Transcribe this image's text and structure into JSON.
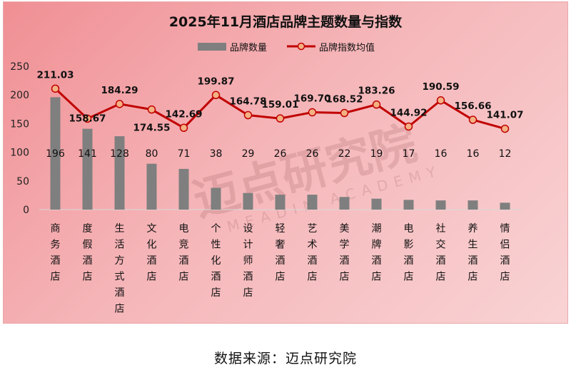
{
  "chart_data": {
    "type": "bar+line",
    "title": "2025年11月酒店品牌主题数量与指数",
    "categories": [
      "商务酒店",
      "度假酒店",
      "生活方式酒店",
      "文化酒店",
      "电竞酒店",
      "个性化酒店",
      "设计师酒店",
      "轻奢酒店",
      "艺术酒店",
      "美学酒店",
      "潮牌酒店",
      "电影酒店",
      "社交酒店",
      "养生酒店",
      "情侣酒店"
    ],
    "series": [
      {
        "name": "品牌数量",
        "type": "bar",
        "values": [
          196,
          141,
          128,
          80,
          71,
          38,
          29,
          26,
          26,
          22,
          19,
          17,
          16,
          16,
          12
        ]
      },
      {
        "name": "品牌指数均值",
        "type": "line",
        "values": [
          211.03,
          158.67,
          184.29,
          174.55,
          142.69,
          199.87,
          164.78,
          159.01,
          169.7,
          168.52,
          183.26,
          144.92,
          190.59,
          156.66,
          141.07
        ]
      }
    ],
    "value_labels": [
      "211.03",
      "158.67",
      "184.29",
      "174.55",
      "142.69",
      "199.87",
      "164.78",
      "159.01",
      "169.70",
      "168.52",
      "183.26",
      "144.92",
      "190.59",
      "156.66",
      "141.07"
    ],
    "ylim": [
      0,
      250
    ],
    "yticks": [
      "0",
      "50",
      "100",
      "150",
      "200",
      "250"
    ],
    "legend_position": "top-center",
    "grid": false,
    "colors": {
      "bar": "#7f7f7f",
      "line": "#c00000",
      "marker_fill": "#f4b183",
      "marker_stroke": "#c00000"
    },
    "watermark": {
      "text": "迈点研究院",
      "subtext": "MEADIN ACADEMY"
    }
  },
  "source_text": "数据来源：迈点研究院"
}
